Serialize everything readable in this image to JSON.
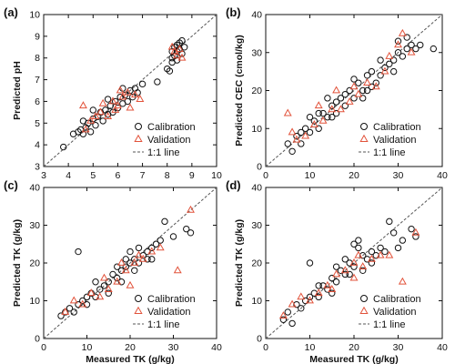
{
  "panels": [
    {
      "label": "(a)",
      "xlabel": "",
      "ylabel": "Predicted pH",
      "xlim": [
        3,
        10
      ],
      "ylim": [
        3,
        10
      ],
      "xticks": [
        3,
        4,
        5,
        6,
        7,
        8,
        9,
        10
      ],
      "yticks": [
        3,
        4,
        5,
        6,
        7,
        8,
        9,
        10
      ],
      "legend": [
        "Calibration",
        "Validation",
        "1:1 line"
      ],
      "legend_position": "bottom-right",
      "calibration": [
        [
          3.8,
          3.9
        ],
        [
          4.2,
          4.5
        ],
        [
          4.4,
          4.6
        ],
        [
          4.5,
          4.7
        ],
        [
          4.6,
          4.5
        ],
        [
          4.7,
          4.8
        ],
        [
          4.8,
          5.0
        ],
        [
          4.9,
          4.6
        ],
        [
          5.0,
          5.2
        ],
        [
          5.1,
          4.9
        ],
        [
          5.2,
          5.3
        ],
        [
          5.3,
          5.5
        ],
        [
          5.4,
          5.1
        ],
        [
          5.5,
          5.6
        ],
        [
          5.6,
          5.4
        ],
        [
          5.7,
          5.8
        ],
        [
          5.8,
          5.5
        ],
        [
          5.9,
          6.0
        ],
        [
          6.0,
          5.7
        ],
        [
          6.1,
          6.2
        ],
        [
          6.2,
          5.9
        ],
        [
          6.3,
          6.3
        ],
        [
          6.4,
          6.0
        ],
        [
          6.5,
          6.5
        ],
        [
          6.6,
          6.2
        ],
        [
          6.7,
          6.6
        ],
        [
          6.8,
          6.4
        ],
        [
          7.0,
          6.8
        ],
        [
          6.2,
          6.6
        ],
        [
          5.6,
          6.1
        ],
        [
          5.0,
          5.6
        ],
        [
          4.6,
          5.1
        ],
        [
          7.6,
          6.9
        ],
        [
          8.0,
          7.5
        ],
        [
          8.1,
          7.4
        ],
        [
          8.2,
          8.0
        ],
        [
          8.2,
          8.3
        ],
        [
          8.3,
          8.5
        ],
        [
          8.3,
          8.1
        ],
        [
          8.4,
          8.6
        ],
        [
          8.4,
          8.3
        ],
        [
          8.5,
          8.7
        ],
        [
          8.5,
          8.4
        ],
        [
          8.6,
          8.8
        ],
        [
          8.6,
          8.2
        ],
        [
          8.4,
          7.9
        ],
        [
          8.2,
          7.8
        ],
        [
          8.7,
          8.5
        ]
      ],
      "validation": [
        [
          4.6,
          5.8
        ],
        [
          4.7,
          4.7
        ],
        [
          4.9,
          5.1
        ],
        [
          5.1,
          5.3
        ],
        [
          5.3,
          5.5
        ],
        [
          5.6,
          5.3
        ],
        [
          5.8,
          6.0
        ],
        [
          6.0,
          5.8
        ],
        [
          6.2,
          6.2
        ],
        [
          6.4,
          6.4
        ],
        [
          6.5,
          5.7
        ],
        [
          6.7,
          6.3
        ],
        [
          6.9,
          6.1
        ],
        [
          5.4,
          5.9
        ],
        [
          6.1,
          6.5
        ],
        [
          5.9,
          5.6
        ],
        [
          8.2,
          8.5
        ],
        [
          8.4,
          8.1
        ],
        [
          8.5,
          8.4
        ],
        [
          8.6,
          8.0
        ],
        [
          8.3,
          8.3
        ]
      ]
    },
    {
      "label": "(b)",
      "xlabel": "",
      "ylabel": "Predicted CEC (cmol/kg)",
      "xlim": [
        0,
        40
      ],
      "ylim": [
        0,
        40
      ],
      "xticks": [
        0,
        10,
        20,
        30,
        40
      ],
      "yticks": [
        0,
        10,
        20,
        30,
        40
      ],
      "legend": [
        "Calibration",
        "Validation",
        "1:1 line"
      ],
      "legend_position": "bottom-right",
      "calibration": [
        [
          5,
          6
        ],
        [
          6,
          4
        ],
        [
          7,
          8
        ],
        [
          8,
          6
        ],
        [
          9,
          10
        ],
        [
          10,
          9
        ],
        [
          11,
          12
        ],
        [
          12,
          10
        ],
        [
          13,
          14
        ],
        [
          14,
          13
        ],
        [
          15,
          16
        ],
        [
          16,
          14
        ],
        [
          17,
          18
        ],
        [
          18,
          16
        ],
        [
          19,
          20
        ],
        [
          20,
          18
        ],
        [
          21,
          22
        ],
        [
          22,
          20
        ],
        [
          23,
          24
        ],
        [
          24,
          21
        ],
        [
          25,
          22
        ],
        [
          26,
          24
        ],
        [
          27,
          26
        ],
        [
          28,
          27
        ],
        [
          29,
          28
        ],
        [
          30,
          30
        ],
        [
          31,
          29
        ],
        [
          32,
          31
        ],
        [
          33,
          32
        ],
        [
          34,
          31
        ],
        [
          35,
          32
        ],
        [
          12,
          14
        ],
        [
          15,
          13
        ],
        [
          18,
          19
        ],
        [
          20,
          23
        ],
        [
          22,
          18
        ],
        [
          8,
          9
        ],
        [
          10,
          13
        ],
        [
          14,
          18
        ],
        [
          16,
          17
        ],
        [
          23,
          20
        ],
        [
          26,
          28
        ],
        [
          29,
          25
        ],
        [
          30,
          33
        ],
        [
          32,
          34
        ],
        [
          38,
          31
        ],
        [
          24,
          25
        ]
      ],
      "validation": [
        [
          5,
          14
        ],
        [
          7,
          7
        ],
        [
          9,
          8
        ],
        [
          11,
          11
        ],
        [
          13,
          12
        ],
        [
          15,
          15
        ],
        [
          17,
          15
        ],
        [
          19,
          17
        ],
        [
          21,
          19
        ],
        [
          23,
          22
        ],
        [
          25,
          21
        ],
        [
          27,
          25
        ],
        [
          30,
          32
        ],
        [
          31,
          35
        ],
        [
          33,
          30
        ],
        [
          28,
          29
        ],
        [
          12,
          16
        ],
        [
          16,
          20
        ],
        [
          20,
          21
        ],
        [
          6,
          9
        ]
      ]
    },
    {
      "label": "(c)",
      "xlabel": "Measured TK (g/kg)",
      "ylabel": "Predicted TK (g/kg)",
      "xlim": [
        0,
        40
      ],
      "ylim": [
        0,
        40
      ],
      "xticks": [
        0,
        10,
        20,
        30,
        40
      ],
      "yticks": [
        0,
        10,
        20,
        30,
        40
      ],
      "legend": [
        "Calibration",
        "Validation",
        "1:1 line"
      ],
      "legend_position": "bottom-right",
      "calibration": [
        [
          4,
          6
        ],
        [
          5,
          7
        ],
        [
          6,
          8
        ],
        [
          7,
          7
        ],
        [
          8,
          9
        ],
        [
          8,
          23
        ],
        [
          9,
          10
        ],
        [
          10,
          11
        ],
        [
          11,
          12
        ],
        [
          12,
          11
        ],
        [
          13,
          13
        ],
        [
          14,
          14
        ],
        [
          15,
          15
        ],
        [
          16,
          17
        ],
        [
          17,
          16
        ],
        [
          18,
          18
        ],
        [
          19,
          19
        ],
        [
          20,
          20
        ],
        [
          21,
          21
        ],
        [
          22,
          20
        ],
        [
          23,
          22
        ],
        [
          24,
          23
        ],
        [
          25,
          24
        ],
        [
          26,
          25
        ],
        [
          27,
          26
        ],
        [
          28,
          31
        ],
        [
          30,
          27
        ],
        [
          33,
          29
        ],
        [
          34,
          28
        ],
        [
          20,
          23
        ],
        [
          18,
          15
        ],
        [
          15,
          12
        ],
        [
          22,
          24
        ],
        [
          19,
          21
        ],
        [
          24,
          21
        ],
        [
          12,
          15
        ],
        [
          10,
          9
        ],
        [
          21,
          18
        ],
        [
          25,
          21
        ],
        [
          17,
          19
        ]
      ],
      "validation": [
        [
          5,
          7
        ],
        [
          7,
          10
        ],
        [
          9,
          9
        ],
        [
          11,
          12
        ],
        [
          13,
          11
        ],
        [
          15,
          13
        ],
        [
          17,
          15
        ],
        [
          19,
          18
        ],
        [
          21,
          20
        ],
        [
          23,
          21
        ],
        [
          25,
          23
        ],
        [
          27,
          24
        ],
        [
          31,
          18
        ],
        [
          34,
          34
        ],
        [
          20,
          14
        ],
        [
          14,
          16
        ],
        [
          22,
          22
        ],
        [
          18,
          20
        ]
      ]
    },
    {
      "label": "(d)",
      "xlabel": "Measured TK (g/kg)",
      "ylabel": "Predicted TK (g/kg)",
      "xlim": [
        0,
        40
      ],
      "ylim": [
        0,
        40
      ],
      "xticks": [
        0,
        10,
        20,
        30,
        40
      ],
      "yticks": [
        0,
        10,
        20,
        30,
        40
      ],
      "legend": [
        "Calibration",
        "Validation",
        "1:1 line"
      ],
      "legend_position": "bottom-right",
      "calibration": [
        [
          4,
          5
        ],
        [
          5,
          7
        ],
        [
          6,
          4
        ],
        [
          7,
          9
        ],
        [
          8,
          8
        ],
        [
          9,
          10
        ],
        [
          10,
          20
        ],
        [
          11,
          12
        ],
        [
          12,
          11
        ],
        [
          13,
          14
        ],
        [
          14,
          13
        ],
        [
          15,
          16
        ],
        [
          16,
          15
        ],
        [
          17,
          18
        ],
        [
          18,
          17
        ],
        [
          19,
          20
        ],
        [
          20,
          19
        ],
        [
          21,
          24
        ],
        [
          22,
          22
        ],
        [
          23,
          21
        ],
        [
          24,
          23
        ],
        [
          25,
          22
        ],
        [
          26,
          24
        ],
        [
          27,
          23
        ],
        [
          28,
          31
        ],
        [
          29,
          28
        ],
        [
          30,
          24
        ],
        [
          31,
          26
        ],
        [
          33,
          29
        ],
        [
          34,
          27
        ],
        [
          19,
          17
        ],
        [
          20,
          25
        ],
        [
          22,
          18
        ],
        [
          16,
          19
        ],
        [
          12,
          14
        ],
        [
          15,
          12
        ],
        [
          21,
          26
        ],
        [
          24,
          20
        ],
        [
          10,
          11
        ],
        [
          18,
          21
        ]
      ],
      "validation": [
        [
          4,
          6
        ],
        [
          6,
          9
        ],
        [
          8,
          11
        ],
        [
          10,
          10
        ],
        [
          12,
          12
        ],
        [
          14,
          14
        ],
        [
          16,
          17
        ],
        [
          18,
          18
        ],
        [
          20,
          20
        ],
        [
          22,
          19
        ],
        [
          24,
          21
        ],
        [
          26,
          22
        ],
        [
          28,
          22
        ],
        [
          31,
          15
        ],
        [
          34,
          28
        ],
        [
          20,
          16
        ],
        [
          15,
          13
        ],
        [
          21,
          22
        ]
      ]
    }
  ],
  "colors": {
    "calibration": "#111111",
    "validation": "#e2533b",
    "oneToOne": "#555555"
  }
}
